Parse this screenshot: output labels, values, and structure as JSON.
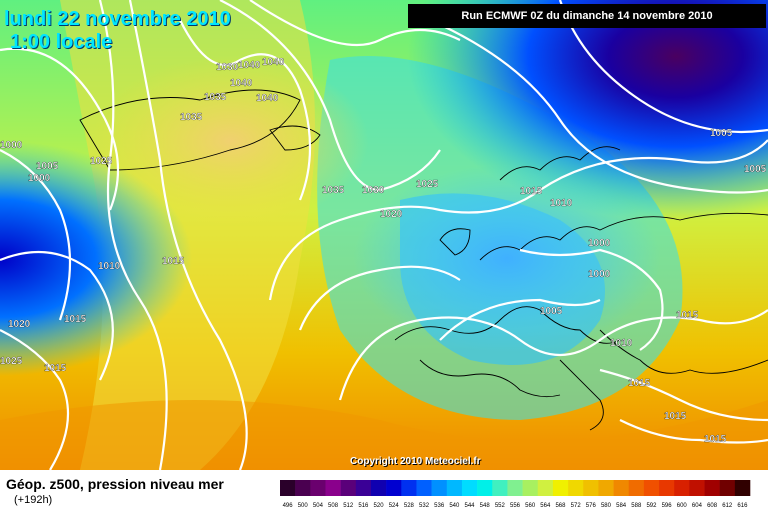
{
  "header": {
    "date": "lundi 22 novembre 2010",
    "time": "1:00 locale",
    "run": "Run ECMWF 0Z du dimanche 14 novembre 2010"
  },
  "copyright": "Copyright 2010 Meteociel.fr",
  "legend": {
    "title": "Géop. z500, pression niveau mer",
    "subtitle": "(+192h)",
    "ticks": [
      "496",
      "500",
      "504",
      "508",
      "512",
      "516",
      "520",
      "524",
      "528",
      "532",
      "536",
      "540",
      "544",
      "548",
      "552",
      "556",
      "560",
      "564",
      "568",
      "572",
      "576",
      "580",
      "584",
      "588",
      "592",
      "596",
      "600",
      "604",
      "608",
      "612",
      "616"
    ],
    "colors": [
      "#2a002a",
      "#4a0050",
      "#6a006e",
      "#8a008c",
      "#5a007a",
      "#3a0096",
      "#1000b0",
      "#0000d0",
      "#0030f0",
      "#0060ff",
      "#0090ff",
      "#00b8ff",
      "#00dcff",
      "#00f0e8",
      "#40f0c0",
      "#80f090",
      "#a8f060",
      "#d0f040",
      "#f0f000",
      "#f0d800",
      "#f0c000",
      "#f0a800",
      "#f08800",
      "#f06c00",
      "#f05000",
      "#e83800",
      "#d82000",
      "#c01000",
      "#a00000",
      "#700000",
      "#300000"
    ]
  },
  "isobar_labels": [
    "1030",
    "1040",
    "1040",
    "1040",
    "1035",
    "1040",
    "1025",
    "1035",
    "1000",
    "1005",
    "1000",
    "1035",
    "1030",
    "1025",
    "1015",
    "1010",
    "1020",
    "1005",
    "1005",
    "1010",
    "1015",
    "1000",
    "1000",
    "1020",
    "1015",
    "1005",
    "1015",
    "1025",
    "1015",
    "1010",
    "1015",
    "1015",
    "1015"
  ]
}
